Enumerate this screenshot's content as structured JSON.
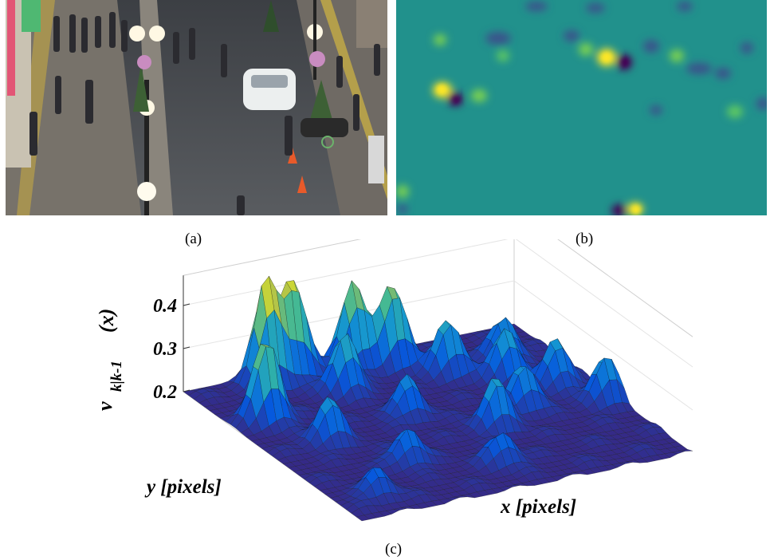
{
  "captions": {
    "a": "(a)",
    "b": "(b)",
    "c": "(c)"
  },
  "chart_data": {
    "type": "surface",
    "xlabel": "x [pixels]",
    "ylabel": "y [pixels]",
    "zlabel_main": "v",
    "zlabel_sub": "k|k-1",
    "zlabel_arg": "(x)",
    "z_ticks": [
      "0.2",
      "0.3",
      "0.4"
    ],
    "zlim": [
      0.2,
      0.45
    ],
    "colormap": "parula",
    "peaks": [
      {
        "x": 0.1,
        "y": 0.28,
        "z": 0.4
      },
      {
        "x": 0.22,
        "y": 0.06,
        "z": 0.44
      },
      {
        "x": 0.31,
        "y": 0.04,
        "z": 0.43
      },
      {
        "x": 0.48,
        "y": 0.06,
        "z": 0.4
      },
      {
        "x": 0.58,
        "y": 0.1,
        "z": 0.39
      },
      {
        "x": 0.38,
        "y": 0.2,
        "z": 0.34
      },
      {
        "x": 0.68,
        "y": 0.22,
        "z": 0.33
      },
      {
        "x": 0.8,
        "y": 0.32,
        "z": 0.32
      },
      {
        "x": 0.9,
        "y": 0.42,
        "z": 0.31
      },
      {
        "x": 0.96,
        "y": 0.58,
        "z": 0.3
      },
      {
        "x": 0.18,
        "y": 0.48,
        "z": 0.3
      },
      {
        "x": 0.45,
        "y": 0.42,
        "z": 0.29
      },
      {
        "x": 0.62,
        "y": 0.6,
        "z": 0.31
      },
      {
        "x": 0.75,
        "y": 0.52,
        "z": 0.3
      },
      {
        "x": 0.3,
        "y": 0.7,
        "z": 0.28
      },
      {
        "x": 0.12,
        "y": 0.86,
        "z": 0.26
      },
      {
        "x": 0.52,
        "y": 0.82,
        "z": 0.27
      },
      {
        "x": 0.86,
        "y": 0.2,
        "z": 0.3
      }
    ]
  }
}
